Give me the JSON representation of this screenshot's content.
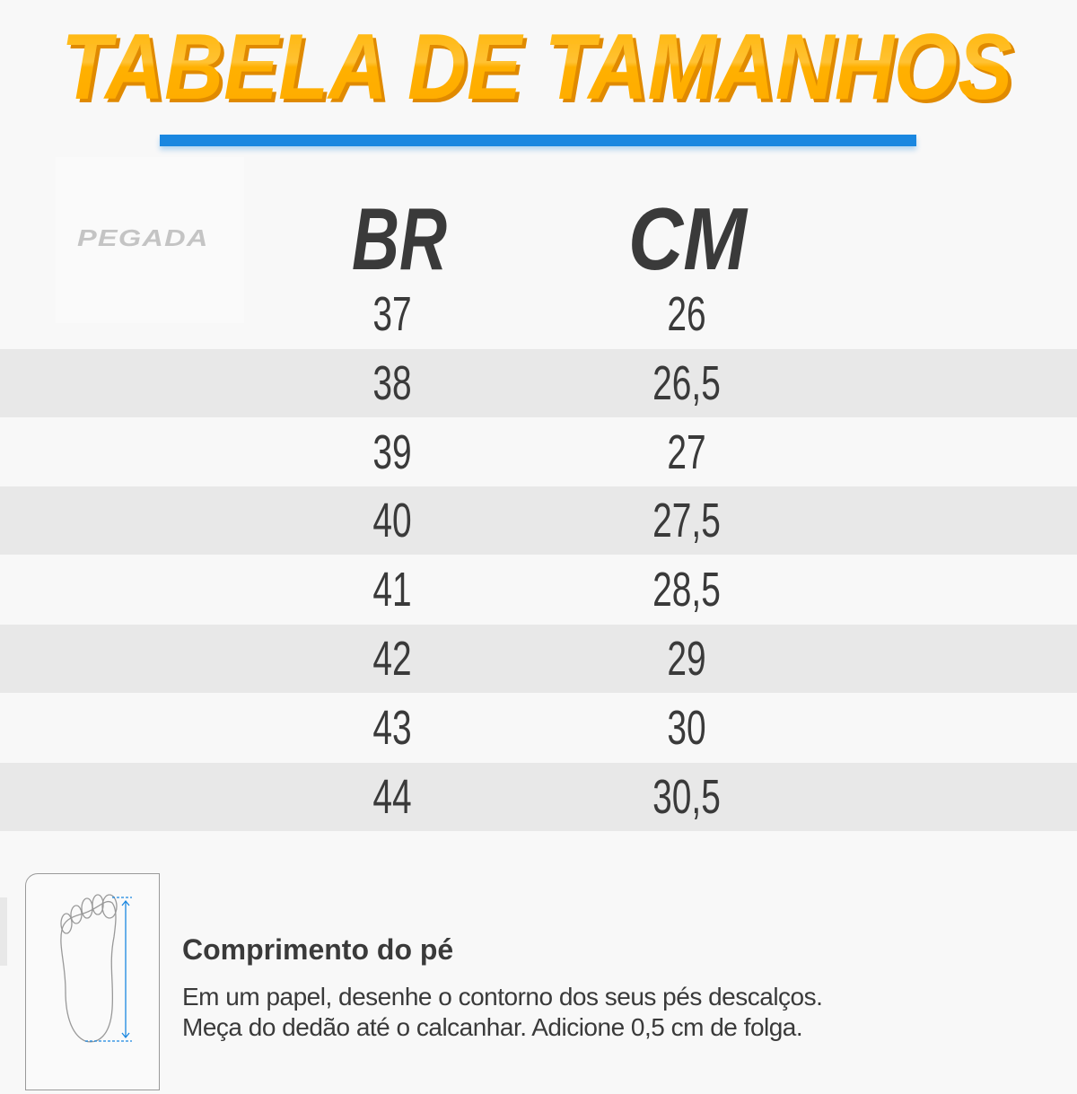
{
  "title": "TABELA DE TAMANHOS",
  "brand_logo": "PEGADA",
  "colors": {
    "title": "#FFB400",
    "accent_bar": "#1A87E0",
    "text": "#3A3A3A",
    "row_alt": "#E8E8E8"
  },
  "table": {
    "headers": {
      "br": "BR",
      "cm": "CM"
    },
    "rows": [
      {
        "br": "37",
        "cm": "26"
      },
      {
        "br": "38",
        "cm": "26,5"
      },
      {
        "br": "39",
        "cm": "27"
      },
      {
        "br": "40",
        "cm": "27,5"
      },
      {
        "br": "41",
        "cm": "28,5"
      },
      {
        "br": "42",
        "cm": "29"
      },
      {
        "br": "43",
        "cm": "30"
      },
      {
        "br": "44",
        "cm": "30,5"
      }
    ]
  },
  "instructions": {
    "icon": "foot-outline-on-paper-icon",
    "heading": "Comprimento do pé",
    "line1": "Em um papel, desenhe o contorno dos seus pés descalços.",
    "line2": "Meça do dedão até o calcanhar. Adicione 0,5 cm de folga."
  }
}
